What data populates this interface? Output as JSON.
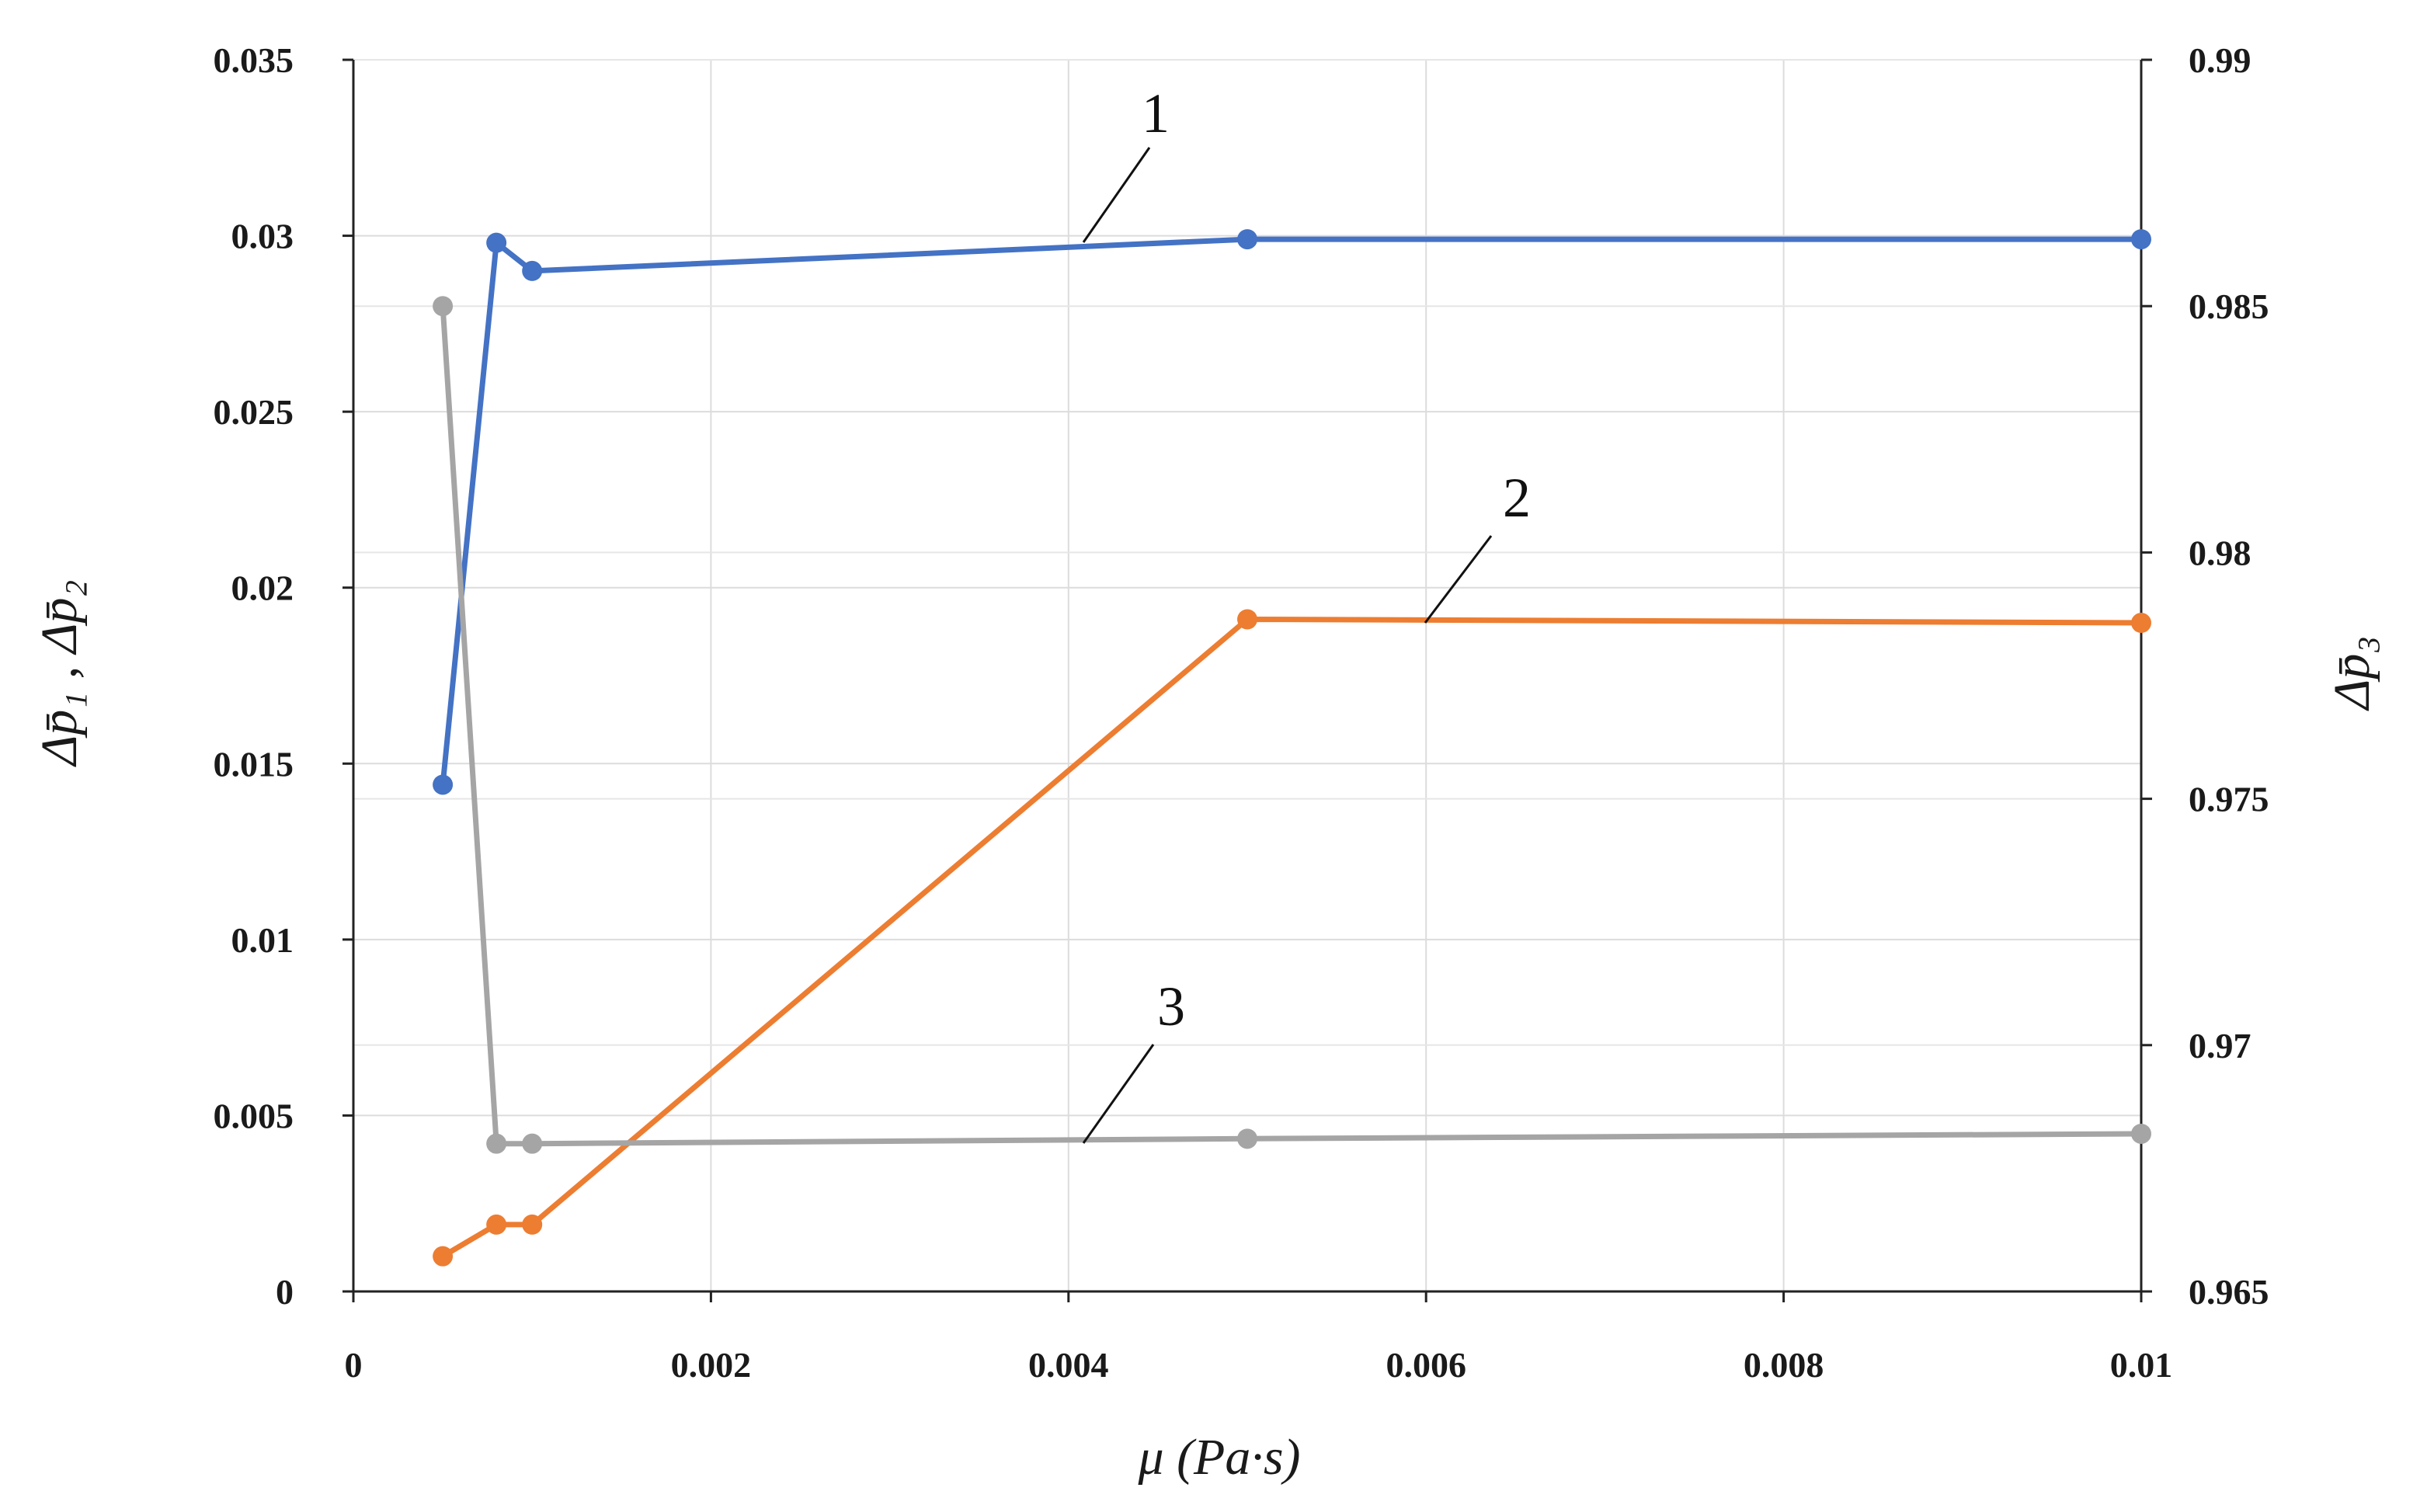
{
  "chart_data": {
    "type": "line",
    "xlabel": "μ (Pa·s)",
    "ylabel_left": "Δp̄₁ , Δp̄₂",
    "ylabel_right": "Δp̄₃",
    "xlim": [
      0,
      0.01
    ],
    "ylim_left": [
      0,
      0.035
    ],
    "ylim_right": [
      0.965,
      0.99
    ],
    "x_ticks": [
      "0",
      "0.002",
      "0.004",
      "0.006",
      "0.008",
      "0.01"
    ],
    "y_left_ticks": [
      "0",
      "0.005",
      "0.01",
      "0.015",
      "0.02",
      "0.025",
      "0.03",
      "0.035"
    ],
    "y_right_ticks": [
      "0.965",
      "0.97",
      "0.975",
      "0.98",
      "0.985",
      "0.99"
    ],
    "grid": true,
    "series": [
      {
        "label": "1",
        "axis": "left",
        "color": "#4472C4",
        "x": [
          0.0005,
          0.0008,
          0.001,
          0.005,
          0.01
        ],
        "y": [
          0.0144,
          0.0298,
          0.029,
          0.0299,
          0.0299
        ]
      },
      {
        "label": "2",
        "axis": "left",
        "color": "#ED7D31",
        "x": [
          0.0005,
          0.0008,
          0.001,
          0.005,
          0.01
        ],
        "y": [
          0.001,
          0.0019,
          0.0019,
          0.0191,
          0.019
        ]
      },
      {
        "label": "3",
        "axis": "right",
        "color": "#A5A5A5",
        "x": [
          0.0005,
          0.0008,
          0.001,
          0.005,
          0.01
        ],
        "y": [
          0.985,
          0.968,
          0.968,
          0.9681,
          0.9682
        ]
      }
    ]
  }
}
